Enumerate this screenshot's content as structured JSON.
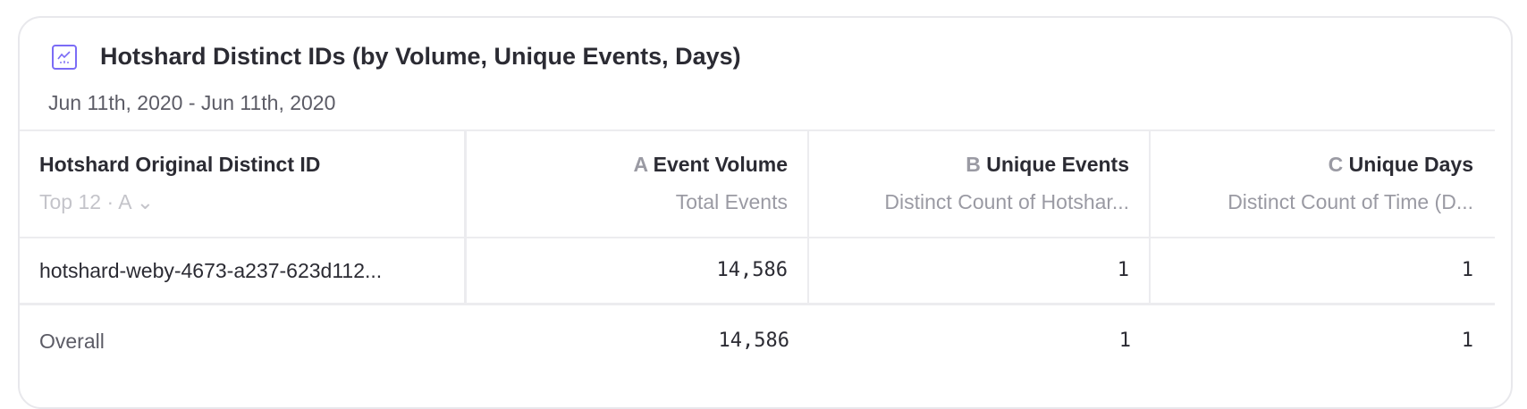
{
  "report": {
    "title": "Hotshard Distinct IDs (by Volume, Unique Events, Days)",
    "icon": "line-chart-icon",
    "accent_color": "#7b6cf6",
    "date_range": "Jun 11th, 2020 - Jun 11th, 2020"
  },
  "table": {
    "group_column": {
      "label": "Hotshard Original Distinct ID",
      "control": "Top 12 · A",
      "control_icon": "chevron-down-icon"
    },
    "columns": [
      {
        "letter": "A",
        "label": "Event Volume",
        "sublabel": "Total Events"
      },
      {
        "letter": "B",
        "label": "Unique Events",
        "sublabel": "Distinct Count of Hotshar..."
      },
      {
        "letter": "C",
        "label": "Unique Days",
        "sublabel": "Distinct Count of Time (D..."
      }
    ],
    "rows": [
      {
        "id": "hotshard-weby-4673-a237-623d112...",
        "values": [
          "14,586",
          "1",
          "1"
        ]
      }
    ],
    "overall": {
      "label": "Overall",
      "values": [
        "14,586",
        "1",
        "1"
      ]
    }
  }
}
